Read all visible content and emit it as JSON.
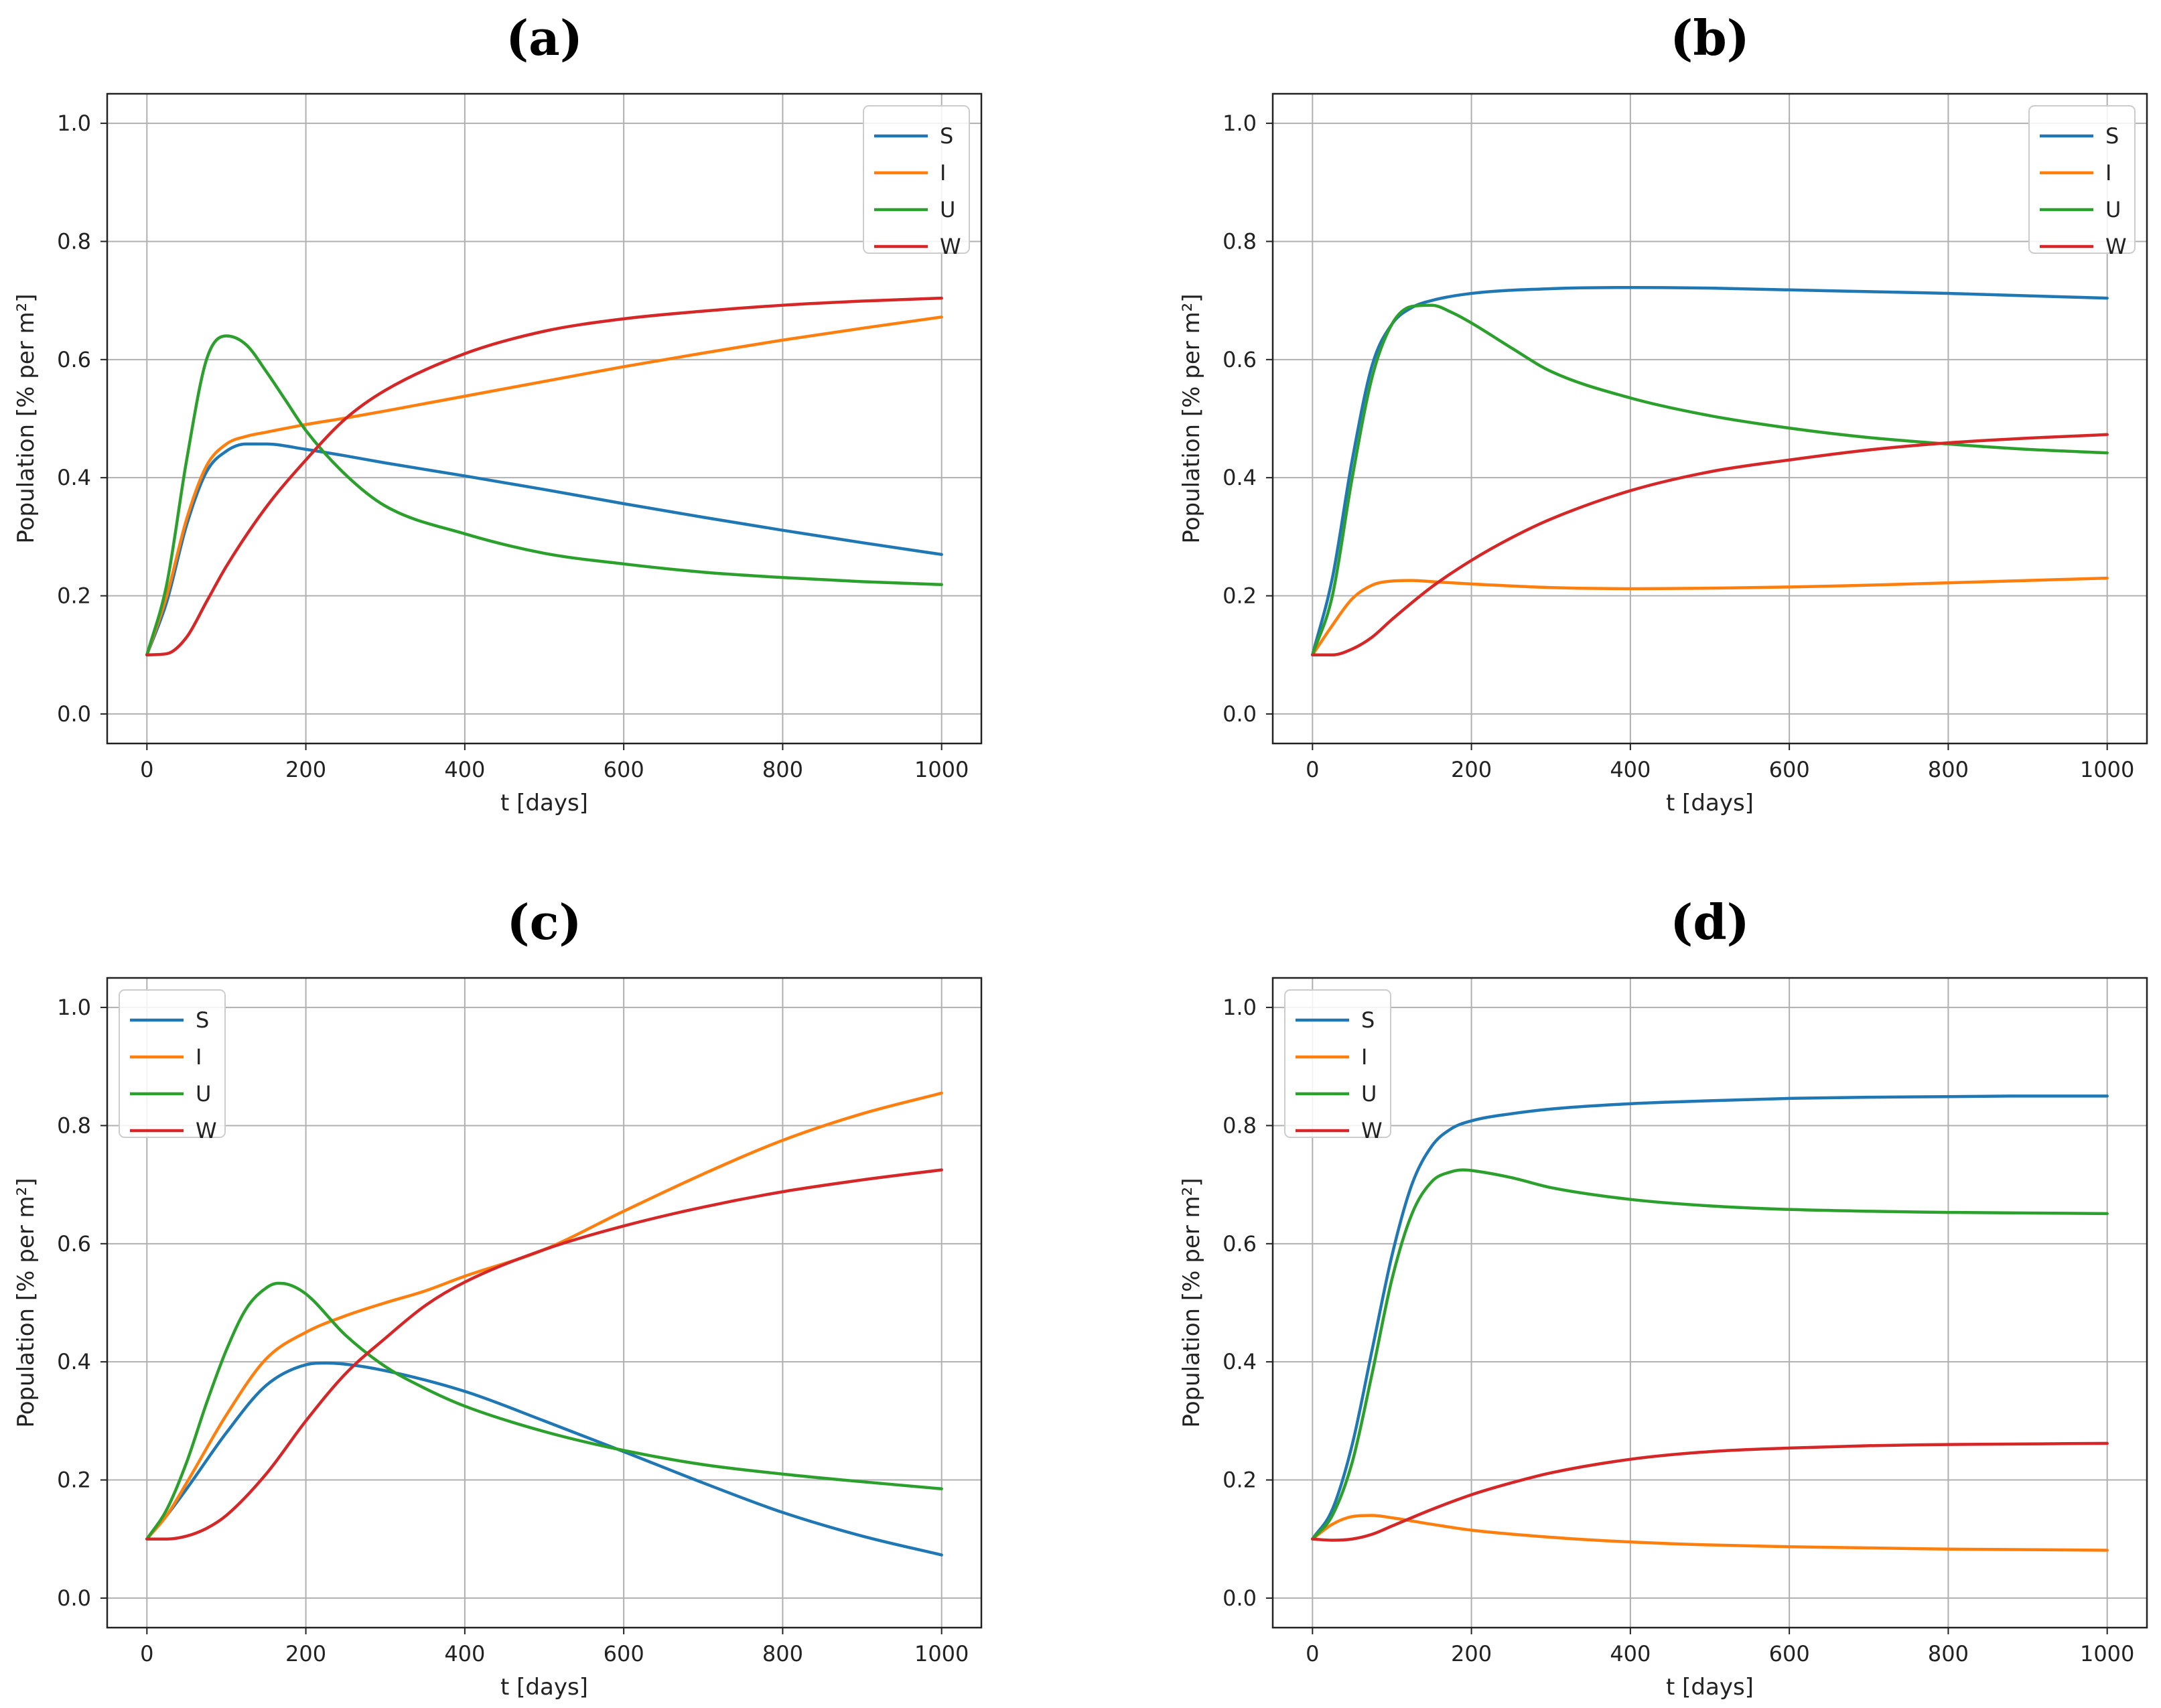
{
  "chart_data": [
    {
      "type": "line",
      "title": "(a)",
      "xlabel": "t [days]",
      "ylabel": "Population [% per m²]",
      "xlim": [
        -50,
        1050
      ],
      "ylim": [
        -0.05,
        1.05
      ],
      "xticks": [
        "0",
        "200",
        "400",
        "600",
        "800",
        "1000"
      ],
      "yticks": [
        "0.0",
        "0.2",
        "0.4",
        "0.6",
        "0.8",
        "1.0"
      ],
      "grid": true,
      "legend": "top-right",
      "series": [
        {
          "name": "S",
          "color": "#1f77b4",
          "x": [
            0,
            25,
            50,
            75,
            100,
            125,
            150,
            200,
            250,
            300,
            400,
            500,
            600,
            700,
            800,
            900,
            1000
          ],
          "y": [
            0.1,
            0.19,
            0.32,
            0.41,
            0.445,
            0.457,
            0.457,
            0.448,
            0.437,
            0.425,
            0.403,
            0.38,
            0.356,
            0.333,
            0.311,
            0.29,
            0.27
          ]
        },
        {
          "name": "I",
          "color": "#ff7f0e",
          "x": [
            0,
            25,
            50,
            75,
            100,
            125,
            150,
            200,
            250,
            300,
            400,
            500,
            600,
            700,
            800,
            900,
            1000
          ],
          "y": [
            0.1,
            0.2,
            0.33,
            0.42,
            0.457,
            0.47,
            0.477,
            0.49,
            0.501,
            0.513,
            0.538,
            0.563,
            0.588,
            0.611,
            0.633,
            0.653,
            0.672
          ]
        },
        {
          "name": "U",
          "color": "#2ca02c",
          "x": [
            0,
            25,
            50,
            75,
            100,
            125,
            150,
            175,
            200,
            250,
            300,
            400,
            500,
            600,
            700,
            800,
            900,
            1000
          ],
          "y": [
            0.1,
            0.22,
            0.43,
            0.6,
            0.64,
            0.625,
            0.58,
            0.53,
            0.48,
            0.405,
            0.352,
            0.305,
            0.272,
            0.254,
            0.24,
            0.231,
            0.224,
            0.219
          ]
        },
        {
          "name": "W",
          "color": "#d62728",
          "x": [
            0,
            25,
            50,
            75,
            100,
            150,
            200,
            250,
            300,
            400,
            500,
            600,
            700,
            800,
            900,
            1000
          ],
          "y": [
            0.1,
            0.102,
            0.13,
            0.19,
            0.25,
            0.35,
            0.43,
            0.5,
            0.548,
            0.61,
            0.648,
            0.669,
            0.682,
            0.692,
            0.699,
            0.704
          ]
        }
      ]
    },
    {
      "type": "line",
      "title": "(b)",
      "xlabel": "t [days]",
      "ylabel": "Population [% per m²]",
      "xlim": [
        -50,
        1050
      ],
      "ylim": [
        -0.05,
        1.05
      ],
      "xticks": [
        "0",
        "200",
        "400",
        "600",
        "800",
        "1000"
      ],
      "yticks": [
        "0.0",
        "0.2",
        "0.4",
        "0.6",
        "0.8",
        "1.0"
      ],
      "grid": true,
      "legend": "top-right",
      "series": [
        {
          "name": "S",
          "color": "#1f77b4",
          "x": [
            0,
            25,
            50,
            75,
            100,
            125,
            150,
            200,
            300,
            400,
            500,
            600,
            700,
            800,
            900,
            1000
          ],
          "y": [
            0.1,
            0.23,
            0.43,
            0.59,
            0.66,
            0.688,
            0.7,
            0.712,
            0.72,
            0.722,
            0.721,
            0.718,
            0.715,
            0.712,
            0.708,
            0.704
          ]
        },
        {
          "name": "I",
          "color": "#ff7f0e",
          "x": [
            0,
            25,
            50,
            75,
            100,
            125,
            150,
            200,
            300,
            400,
            500,
            600,
            700,
            800,
            900,
            1000
          ],
          "y": [
            0.1,
            0.15,
            0.195,
            0.218,
            0.225,
            0.226,
            0.224,
            0.22,
            0.214,
            0.212,
            0.213,
            0.215,
            0.218,
            0.222,
            0.226,
            0.23
          ]
        },
        {
          "name": "U",
          "color": "#2ca02c",
          "x": [
            0,
            25,
            50,
            75,
            100,
            125,
            150,
            175,
            200,
            250,
            300,
            400,
            500,
            600,
            700,
            800,
            900,
            1000
          ],
          "y": [
            0.1,
            0.2,
            0.4,
            0.57,
            0.66,
            0.69,
            0.692,
            0.68,
            0.662,
            0.62,
            0.58,
            0.535,
            0.505,
            0.484,
            0.468,
            0.457,
            0.448,
            0.442
          ]
        },
        {
          "name": "W",
          "color": "#d62728",
          "x": [
            0,
            25,
            50,
            75,
            100,
            150,
            200,
            250,
            300,
            400,
            500,
            600,
            700,
            800,
            900,
            1000
          ],
          "y": [
            0.1,
            0.1,
            0.11,
            0.13,
            0.16,
            0.215,
            0.26,
            0.298,
            0.33,
            0.378,
            0.41,
            0.43,
            0.447,
            0.459,
            0.467,
            0.473
          ]
        }
      ]
    },
    {
      "type": "line",
      "title": "(c)",
      "xlabel": "t [days]",
      "ylabel": "Population [% per m²]",
      "xlim": [
        -50,
        1050
      ],
      "ylim": [
        -0.05,
        1.05
      ],
      "xticks": [
        "0",
        "200",
        "400",
        "600",
        "800",
        "1000"
      ],
      "yticks": [
        "0.0",
        "0.2",
        "0.4",
        "0.6",
        "0.8",
        "1.0"
      ],
      "grid": true,
      "legend": "top-left",
      "series": [
        {
          "name": "S",
          "color": "#1f77b4",
          "x": [
            0,
            25,
            50,
            100,
            150,
            200,
            225,
            250,
            300,
            400,
            500,
            600,
            700,
            800,
            900,
            1000
          ],
          "y": [
            0.1,
            0.14,
            0.185,
            0.28,
            0.36,
            0.395,
            0.398,
            0.396,
            0.385,
            0.35,
            0.3,
            0.248,
            0.195,
            0.145,
            0.105,
            0.073
          ]
        },
        {
          "name": "I",
          "color": "#ff7f0e",
          "x": [
            0,
            25,
            50,
            100,
            150,
            200,
            250,
            300,
            350,
            400,
            500,
            600,
            700,
            800,
            900,
            1000
          ],
          "y": [
            0.1,
            0.14,
            0.195,
            0.31,
            0.405,
            0.45,
            0.478,
            0.5,
            0.52,
            0.545,
            0.59,
            0.655,
            0.718,
            0.775,
            0.82,
            0.855
          ]
        },
        {
          "name": "U",
          "color": "#2ca02c",
          "x": [
            0,
            25,
            50,
            75,
            100,
            125,
            150,
            165,
            175,
            200,
            250,
            300,
            350,
            400,
            500,
            600,
            700,
            800,
            900,
            1000
          ],
          "y": [
            0.1,
            0.15,
            0.23,
            0.33,
            0.42,
            0.49,
            0.525,
            0.533,
            0.532,
            0.515,
            0.445,
            0.392,
            0.355,
            0.325,
            0.282,
            0.25,
            0.226,
            0.21,
            0.197,
            0.185
          ]
        },
        {
          "name": "W",
          "color": "#d62728",
          "x": [
            0,
            25,
            50,
            75,
            100,
            150,
            200,
            250,
            300,
            350,
            400,
            500,
            600,
            700,
            800,
            900,
            1000
          ],
          "y": [
            0.1,
            0.1,
            0.105,
            0.118,
            0.14,
            0.21,
            0.3,
            0.38,
            0.44,
            0.495,
            0.535,
            0.59,
            0.63,
            0.662,
            0.688,
            0.708,
            0.725
          ]
        }
      ]
    },
    {
      "type": "line",
      "title": "(d)",
      "xlabel": "t [days]",
      "ylabel": "Population [% per m²]",
      "xlim": [
        -50,
        1050
      ],
      "ylim": [
        -0.05,
        1.05
      ],
      "xticks": [
        "0",
        "200",
        "400",
        "600",
        "800",
        "1000"
      ],
      "yticks": [
        "0.0",
        "0.2",
        "0.4",
        "0.6",
        "0.8",
        "1.0"
      ],
      "grid": true,
      "legend": "top-left",
      "series": [
        {
          "name": "S",
          "color": "#1f77b4",
          "x": [
            0,
            25,
            50,
            75,
            100,
            125,
            150,
            175,
            200,
            250,
            300,
            400,
            500,
            600,
            700,
            800,
            900,
            1000
          ],
          "y": [
            0.1,
            0.15,
            0.26,
            0.42,
            0.58,
            0.7,
            0.765,
            0.795,
            0.808,
            0.82,
            0.828,
            0.837,
            0.842,
            0.846,
            0.848,
            0.849,
            0.85,
            0.85
          ]
        },
        {
          "name": "I",
          "color": "#ff7f0e",
          "x": [
            0,
            25,
            50,
            75,
            100,
            150,
            200,
            300,
            400,
            500,
            600,
            700,
            800,
            900,
            1000
          ],
          "y": [
            0.1,
            0.125,
            0.138,
            0.14,
            0.136,
            0.125,
            0.115,
            0.103,
            0.095,
            0.09,
            0.087,
            0.085,
            0.083,
            0.082,
            0.081
          ]
        },
        {
          "name": "U",
          "color": "#2ca02c",
          "x": [
            0,
            25,
            50,
            75,
            100,
            125,
            150,
            175,
            190,
            200,
            250,
            300,
            400,
            500,
            600,
            700,
            800,
            900,
            1000
          ],
          "y": [
            0.1,
            0.14,
            0.23,
            0.38,
            0.54,
            0.65,
            0.705,
            0.722,
            0.725,
            0.724,
            0.712,
            0.695,
            0.675,
            0.664,
            0.658,
            0.655,
            0.653,
            0.652,
            0.651
          ]
        },
        {
          "name": "W",
          "color": "#d62728",
          "x": [
            0,
            25,
            50,
            75,
            100,
            150,
            200,
            250,
            300,
            400,
            500,
            600,
            700,
            800,
            900,
            1000
          ],
          "y": [
            0.1,
            0.098,
            0.1,
            0.108,
            0.122,
            0.15,
            0.175,
            0.195,
            0.212,
            0.235,
            0.248,
            0.254,
            0.258,
            0.26,
            0.261,
            0.262
          ]
        }
      ]
    }
  ]
}
